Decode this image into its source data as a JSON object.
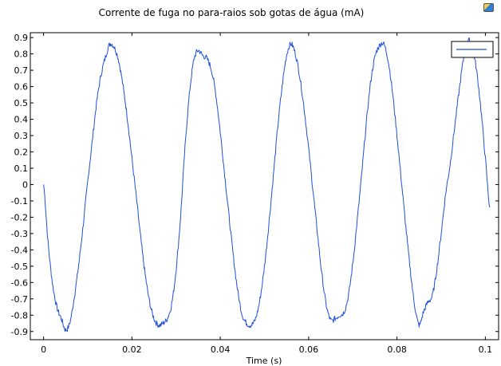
{
  "window": {
    "icon": "plot-export-icon"
  },
  "chart_data": {
    "type": "line",
    "title": "Corrente de fuga no para-raios sob gotas de água (mA)",
    "xlabel": "Time (s)",
    "ylabel": "",
    "xlim": [
      -0.003,
      0.103
    ],
    "ylim": [
      -0.95,
      0.93
    ],
    "xticks": [
      0,
      0.02,
      0.04,
      0.06,
      0.08,
      0.1
    ],
    "xtick_labels": [
      "0",
      "0.02",
      "0.04",
      "0.06",
      "0.08",
      "0.1"
    ],
    "yticks": [
      0.9,
      0.8,
      0.7,
      0.6,
      0.5,
      0.4,
      0.3,
      0.2,
      0.1,
      0,
      -0.1,
      -0.2,
      -0.3,
      -0.4,
      -0.5,
      -0.6,
      -0.7,
      -0.8,
      -0.9
    ],
    "ytick_labels": [
      "0.9",
      "0.8",
      "0.7",
      "0.6",
      "0.5",
      "0.4",
      "0.3",
      "0.2",
      "0.1",
      "0",
      "-0.1",
      "-0.2",
      "-0.3",
      "-0.4",
      "-0.5",
      "-0.6",
      "-0.7",
      "-0.8",
      "-0.9"
    ],
    "grid": false,
    "legend": {
      "placement": "top-right",
      "entries": [
        ""
      ]
    },
    "series": [
      {
        "color": "#1f4fd8",
        "x": [
          0.0,
          0.001,
          0.002,
          0.003,
          0.004,
          0.005,
          0.006,
          0.007,
          0.008,
          0.009,
          0.01,
          0.011,
          0.012,
          0.013,
          0.014,
          0.015,
          0.016,
          0.017,
          0.018,
          0.019,
          0.02,
          0.021,
          0.022,
          0.023,
          0.024,
          0.025,
          0.026,
          0.027,
          0.028,
          0.029,
          0.03,
          0.031,
          0.032,
          0.033,
          0.034,
          0.035,
          0.036,
          0.037,
          0.038,
          0.039,
          0.04,
          0.041,
          0.042,
          0.043,
          0.044,
          0.045,
          0.046,
          0.047,
          0.048,
          0.049,
          0.05,
          0.051,
          0.052,
          0.053,
          0.054,
          0.055,
          0.056,
          0.057,
          0.058,
          0.059,
          0.06,
          0.061,
          0.062,
          0.063,
          0.064,
          0.065,
          0.066,
          0.067,
          0.068,
          0.069,
          0.07,
          0.071,
          0.072,
          0.073,
          0.074,
          0.075,
          0.076,
          0.077,
          0.078,
          0.079,
          0.08,
          0.081,
          0.082,
          0.083,
          0.084,
          0.085,
          0.086,
          0.087,
          0.088,
          0.089,
          0.09,
          0.091,
          0.092,
          0.093,
          0.094,
          0.095,
          0.096,
          0.097,
          0.098,
          0.099,
          0.1,
          0.101
        ],
        "y": [
          0.0,
          -0.35,
          -0.6,
          -0.75,
          -0.82,
          -0.89,
          -0.84,
          -0.68,
          -0.48,
          -0.24,
          0.02,
          0.26,
          0.5,
          0.67,
          0.78,
          0.86,
          0.84,
          0.76,
          0.6,
          0.4,
          0.16,
          -0.08,
          -0.33,
          -0.55,
          -0.72,
          -0.82,
          -0.86,
          -0.85,
          -0.82,
          -0.73,
          -0.52,
          -0.2,
          0.22,
          0.55,
          0.76,
          0.82,
          0.79,
          0.77,
          0.7,
          0.55,
          0.32,
          0.06,
          -0.2,
          -0.45,
          -0.66,
          -0.8,
          -0.85,
          -0.86,
          -0.82,
          -0.7,
          -0.5,
          -0.24,
          0.05,
          0.35,
          0.6,
          0.79,
          0.86,
          0.8,
          0.66,
          0.46,
          0.22,
          -0.04,
          -0.3,
          -0.55,
          -0.74,
          -0.83,
          -0.82,
          -0.8,
          -0.78,
          -0.68,
          -0.48,
          -0.22,
          0.06,
          0.36,
          0.62,
          0.78,
          0.85,
          0.86,
          0.76,
          0.56,
          0.3,
          0.02,
          -0.26,
          -0.52,
          -0.74,
          -0.86,
          -0.78,
          -0.72,
          -0.68,
          -0.52,
          -0.3,
          -0.06,
          0.12,
          0.34,
          0.56,
          0.76,
          0.88,
          0.84,
          0.7,
          0.46,
          0.16,
          -0.14
        ]
      }
    ]
  }
}
